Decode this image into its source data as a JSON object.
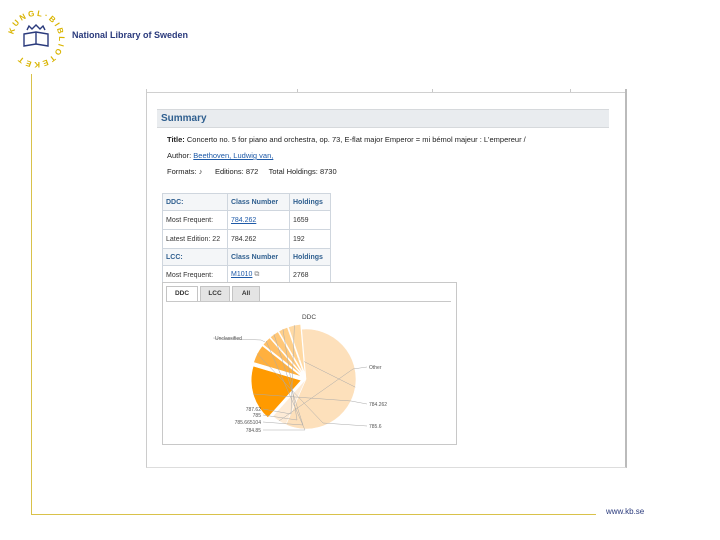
{
  "branding": {
    "logo_letters": "KUNGL·BIBLIOTEKET",
    "name": "National Library of Sweden",
    "website": "www.kb.se"
  },
  "summary": {
    "heading": "Summary",
    "title_label": "Title:",
    "title_value": "Concerto no. 5 for piano and orchestra, op. 73, E-flat major Emperor = mi bémol majeur : L'empereur /",
    "author_label": "Author:",
    "author_value": "Beethoven, Ludwig van,",
    "formats_label": "Formats:",
    "formats_icon": "music-note-icon",
    "editions_label": "Editions:",
    "editions_value": "872",
    "holdings_label": "Total Holdings:",
    "holdings_value": "8730"
  },
  "classification": {
    "ddc_header": [
      "DDC:",
      "Class Number",
      "Holdings"
    ],
    "ddc_rows": [
      {
        "label": "Most Frequent:",
        "class_number": "784.262",
        "holdings": "1659"
      },
      {
        "label": "Latest Edition: 22",
        "class_number": "784.262",
        "holdings": "192"
      }
    ],
    "lcc_header": [
      "LCC:",
      "Class Number",
      "Holdings"
    ],
    "lcc_rows": [
      {
        "label": "Most Frequent:",
        "class_number": "M1010",
        "holdings": "2768"
      }
    ]
  },
  "chart_tabs": [
    "DDC",
    "LCC",
    "All"
  ],
  "colors": {
    "accent_gold": "#d9c24a",
    "brand_blue": "#2a3a7c",
    "link_blue": "#1e5aa8",
    "pie_unclassified": "#fde2be",
    "pie_main": "#ff9900"
  },
  "chart_data": {
    "type": "pie",
    "title": "DDC",
    "slices": [
      {
        "label": "Unclassified",
        "value": 58,
        "color": "#fde0bb"
      },
      {
        "label": "Other",
        "value": 5,
        "color": "#fdebd6"
      },
      {
        "label": "784.262",
        "value": 18,
        "color": "#ff9a00"
      },
      {
        "label": "785.6",
        "value": 6,
        "color": "#ffb03e"
      },
      {
        "label": "784.85",
        "value": 3,
        "color": "#ffbf66"
      },
      {
        "label": "785.665104",
        "value": 3,
        "color": "#ffc778"
      },
      {
        "label": "785",
        "value": 3,
        "color": "#ffcf8a"
      },
      {
        "label": "787.62",
        "value": 4,
        "color": "#ffd9a3"
      }
    ]
  }
}
